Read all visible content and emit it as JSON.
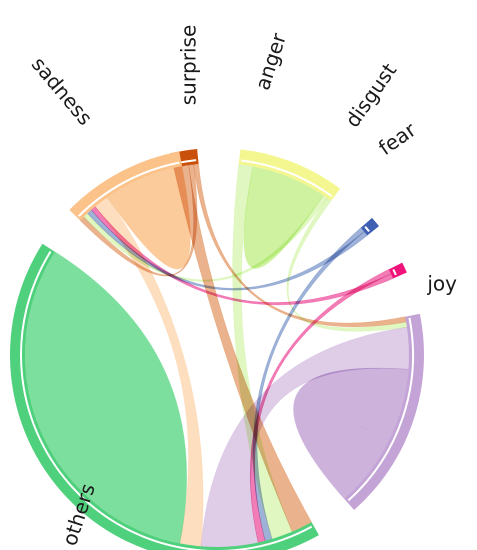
{
  "chart_data": {
    "type": "chord",
    "title": "",
    "groups": [
      {
        "name": "surprise",
        "color": "#c9500a",
        "ribbon_color": "#d8742f"
      },
      {
        "name": "anger",
        "color": "#f4f790",
        "ribbon_color": "#c6f08e"
      },
      {
        "name": "disgust",
        "color": "#3f5fb2",
        "ribbon_color": "#4e72b8"
      },
      {
        "name": "fear",
        "color": "#f0137c",
        "ribbon_color": "#e8127a"
      },
      {
        "name": "joy",
        "color": "#c4a4d6",
        "ribbon_color": "#c4a4d6"
      },
      {
        "name": "others",
        "color": "#4ed07c",
        "ribbon_color": "#66d98c"
      },
      {
        "name": "sadness",
        "color": "#fbc28a",
        "ribbon_color": "#fbc28a"
      }
    ],
    "approximate_group_spans_deg": {
      "surprise": 7.5,
      "anger": 30,
      "disgust": 3,
      "fear": 3,
      "joy": 60,
      "others": 152,
      "sadness": 35
    },
    "links": [
      {
        "source": "surprise",
        "target": "others",
        "strength": "small"
      },
      {
        "source": "surprise",
        "target": "sadness",
        "strength": "very small"
      },
      {
        "source": "surprise",
        "target": "joy",
        "strength": "very small"
      },
      {
        "source": "anger",
        "target": "others",
        "strength": "small"
      },
      {
        "source": "anger",
        "target": "anger",
        "strength": "medium",
        "self": true
      },
      {
        "source": "anger",
        "target": "sadness",
        "strength": "very small"
      },
      {
        "source": "anger",
        "target": "joy",
        "strength": "very small"
      },
      {
        "source": "disgust",
        "target": "others",
        "strength": "very small"
      },
      {
        "source": "disgust",
        "target": "sadness",
        "strength": "very small"
      },
      {
        "source": "fear",
        "target": "others",
        "strength": "very small"
      },
      {
        "source": "fear",
        "target": "sadness",
        "strength": "very small"
      },
      {
        "source": "joy",
        "target": "others",
        "strength": "medium"
      },
      {
        "source": "joy",
        "target": "joy",
        "strength": "large",
        "self": true
      },
      {
        "source": "sadness",
        "target": "others",
        "strength": "small"
      },
      {
        "source": "sadness",
        "target": "sadness",
        "strength": "medium",
        "self": true
      },
      {
        "source": "others",
        "target": "others",
        "strength": "very large",
        "self": true
      }
    ]
  }
}
